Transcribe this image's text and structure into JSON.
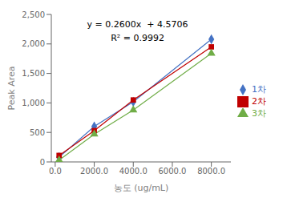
{
  "chart_data": {
    "type": "line",
    "xlabel": "농도 (ug/mL)",
    "ylabel": "Peak Area",
    "annotations": [
      "y = 0.2600x  + 4.5706",
      "R² = 0.9992"
    ],
    "x": [
      200.0,
      2000.0,
      4000.0,
      8000.0
    ],
    "series": [
      {
        "name": "1차",
        "color": "#4472C4",
        "marker": "diamond",
        "values": [
          80,
          600,
          1020,
          2080
        ]
      },
      {
        "name": "2차",
        "color": "#C00000",
        "marker": "square",
        "values": [
          110,
          530,
          1050,
          1950
        ]
      },
      {
        "name": "3차",
        "color": "#70AD47",
        "marker": "triangle",
        "values": [
          30,
          470,
          880,
          1840
        ]
      }
    ],
    "xlim": [
      -200,
      9000
    ],
    "ylim": [
      0,
      2500
    ],
    "xticks": [
      {
        "value": 0,
        "label": "0.0"
      },
      {
        "value": 2000,
        "label": "2000.0"
      },
      {
        "value": 4000,
        "label": "4000.0"
      },
      {
        "value": 6000,
        "label": "6000.0"
      },
      {
        "value": 8000,
        "label": "8000.0"
      }
    ],
    "yticks": [
      0,
      500,
      {
        "value": 1000,
        "label": "1,000"
      },
      {
        "value": 1500,
        "label": "1,500"
      },
      {
        "value": 2000,
        "label": "2,000"
      },
      {
        "value": 2500,
        "label": "2,500"
      }
    ],
    "grid": false,
    "legend": "right"
  }
}
